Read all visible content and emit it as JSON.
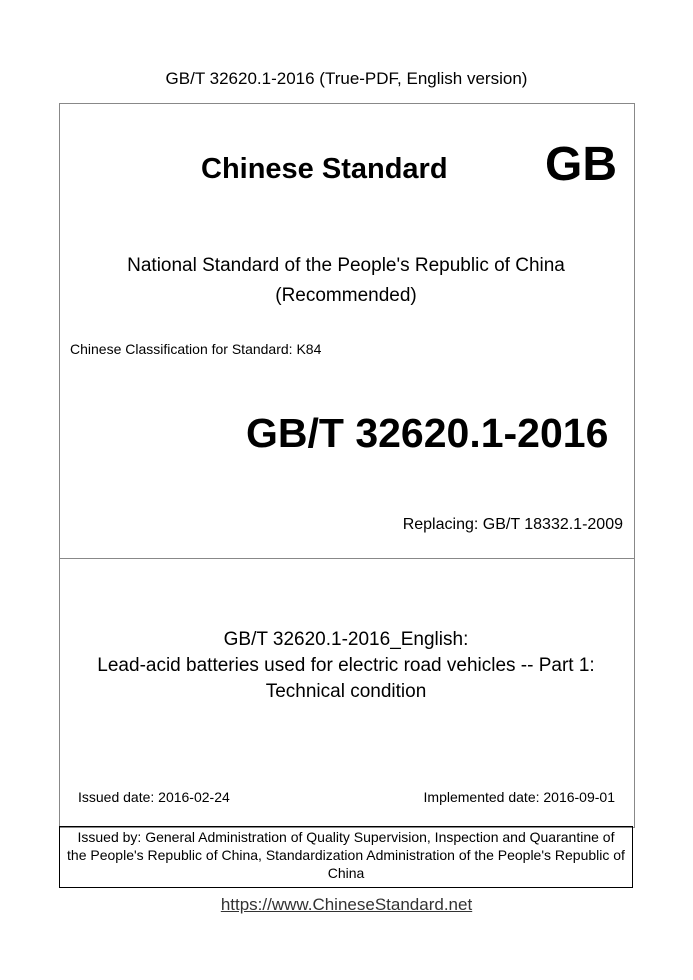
{
  "header": "GB/T 32620.1-2016 (True-PDF, English version)",
  "cover": {
    "chinese_standard": "Chinese Standard",
    "gb_mark": "GB",
    "national_line1": "National Standard of the People's Republic of China",
    "national_line2": "(Recommended)",
    "classification": "Chinese Classification for Standard: K84",
    "standard_number": "GB/T 32620.1-2016",
    "replacing": "Replacing: GB/T 18332.1-2009"
  },
  "title": {
    "line1": "GB/T 32620.1-2016_English:",
    "line2": "Lead-acid batteries used for electric road vehicles -- Part 1:",
    "line3": "Technical condition"
  },
  "dates": {
    "issued": "Issued date: 2016-02-24",
    "implemented": "Implemented date: 2016-09-01"
  },
  "issued_by": {
    "line1": "Issued by: General Administration of Quality Supervision, Inspection and Quarantine of",
    "line2": "the People's Republic of China, Standardization Administration of the People's Republic of",
    "line3": "China"
  },
  "footer_link": "https://www.ChineseStandard.net"
}
